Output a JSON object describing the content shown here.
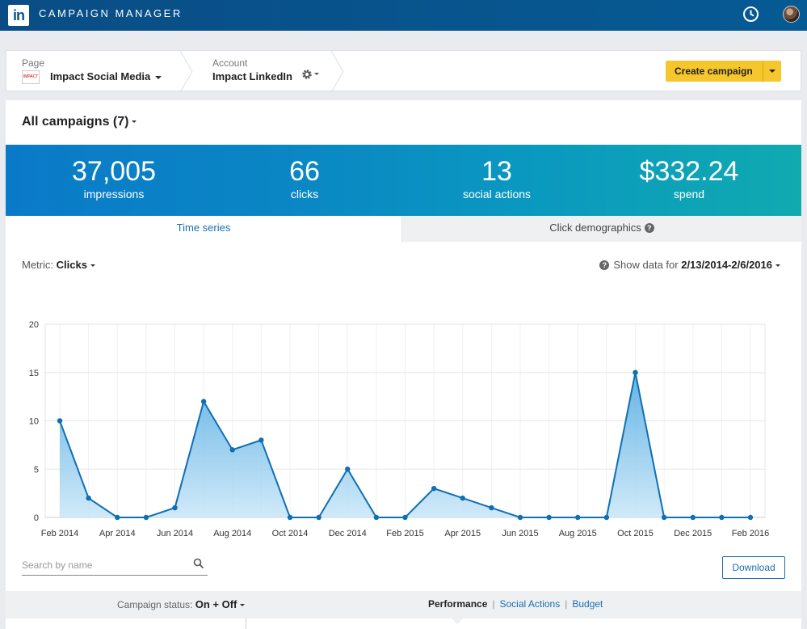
{
  "topbar": {
    "logo_text": "in",
    "title": "CAMPAIGN MANAGER",
    "icons": [
      "history-clock-icon",
      "user-avatar"
    ]
  },
  "breadcrumb": {
    "page_label": "Page",
    "page_value": "Impact Social Media",
    "page_thumb_text": "IMPACT",
    "account_label": "Account",
    "account_value": "Impact LinkedIn"
  },
  "actions": {
    "create_campaign": "Create campaign"
  },
  "campaigns": {
    "heading": "All campaigns (7)"
  },
  "stats": [
    {
      "value": "37,005",
      "label": "impressions"
    },
    {
      "value": "66",
      "label": "clicks"
    },
    {
      "value": "13",
      "label": "social actions"
    },
    {
      "value": "$332.24",
      "label": "spend"
    }
  ],
  "tabs": {
    "time_series": "Time series",
    "click_demographics": "Click demographics"
  },
  "controls": {
    "metric_label": "Metric:",
    "metric_value": "Clicks",
    "show_data_label": "Show data for",
    "date_range": "2/13/2014-2/6/2016"
  },
  "chart_data": {
    "type": "area",
    "x": [
      "Feb 2014",
      "Mar 2014",
      "Apr 2014",
      "May 2014",
      "Jun 2014",
      "Jul 2014",
      "Aug 2014",
      "Sep 2014",
      "Oct 2014",
      "Nov 2014",
      "Dec 2014",
      "Jan 2015",
      "Feb 2015",
      "Mar 2015",
      "Apr 2015",
      "May 2015",
      "Jun 2015",
      "Jul 2015",
      "Aug 2015",
      "Sep 2015",
      "Oct 2015",
      "Nov 2015",
      "Dec 2015",
      "Jan 2016",
      "Feb 2016"
    ],
    "values": [
      10,
      2,
      0,
      0,
      1,
      12,
      7,
      8,
      0,
      0,
      5,
      0,
      0,
      3,
      2,
      1,
      0,
      0,
      0,
      0,
      15,
      0,
      0,
      0,
      0
    ],
    "x_tick_labels": [
      "Feb 2014",
      "Apr 2014",
      "Jun 2014",
      "Aug 2014",
      "Oct 2014",
      "Dec 2014",
      "Feb 2015",
      "Apr 2015",
      "Jun 2015",
      "Aug 2015",
      "Oct 2015",
      "Dec 2015",
      "Feb 2016"
    ],
    "y_ticks": [
      0,
      5,
      10,
      15,
      20
    ],
    "ylim": [
      0,
      20
    ],
    "title": "",
    "xlabel": "",
    "ylabel": "",
    "grid": true,
    "colors": {
      "line": "#0f6fb4",
      "fill_top": "#4aa7e0",
      "fill_bottom": "#c8e6f8"
    }
  },
  "table_controls": {
    "search_placeholder": "Search by name",
    "download": "Download"
  },
  "footer": {
    "status_label": "Campaign status:",
    "status_value": "On + Off",
    "views": {
      "performance": "Performance",
      "social_actions": "Social Actions",
      "budget": "Budget"
    }
  }
}
